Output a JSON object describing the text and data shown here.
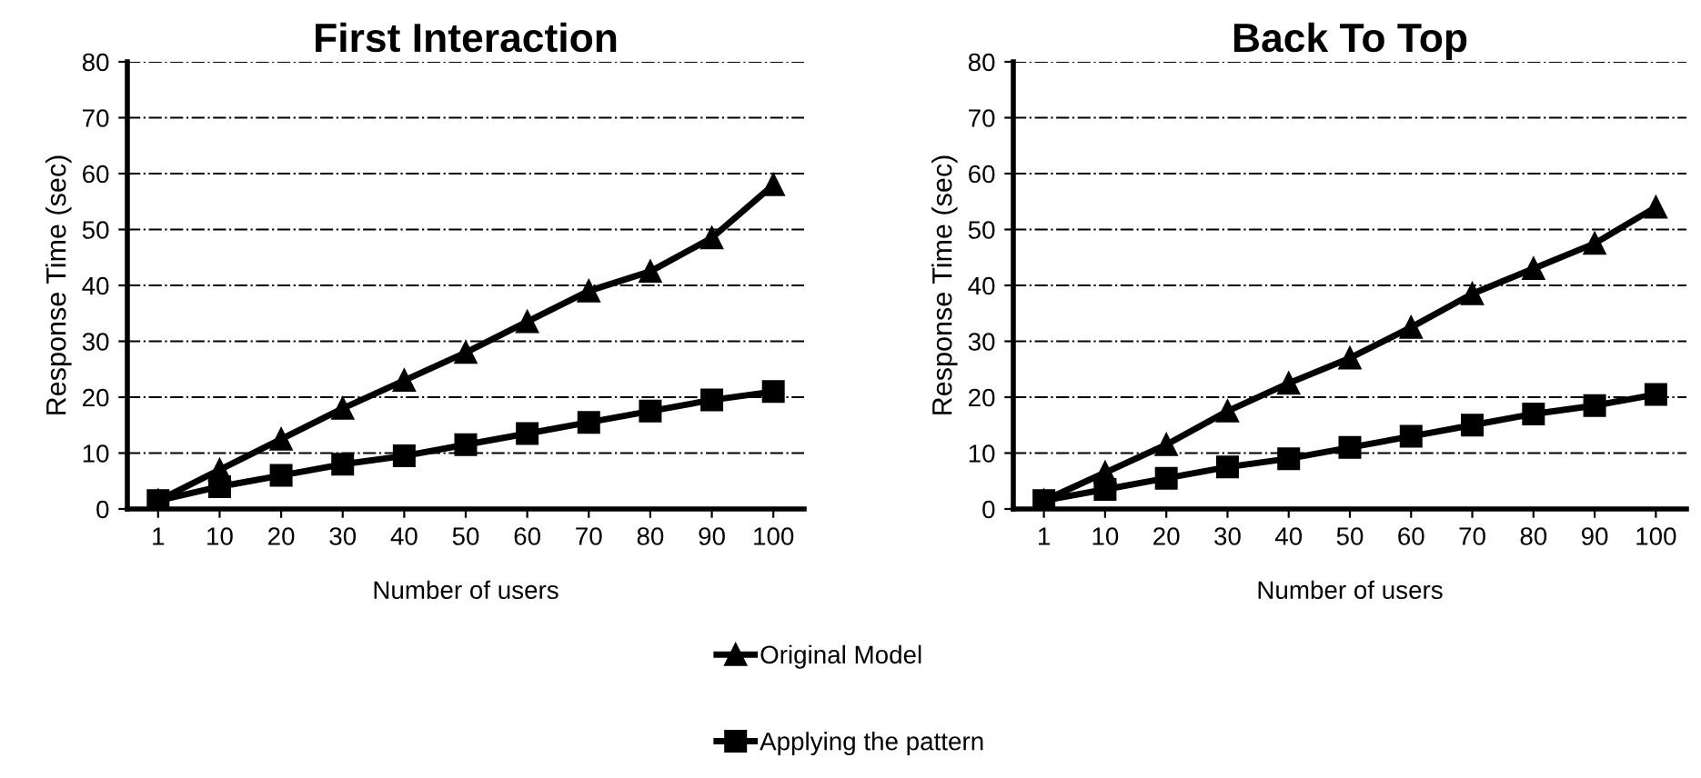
{
  "chart_data": [
    {
      "type": "line",
      "title": "First Interaction",
      "xlabel": "Number of users",
      "ylabel": "Response Time (sec)",
      "categories": [
        "1",
        "10",
        "20",
        "30",
        "40",
        "50",
        "60",
        "70",
        "80",
        "90",
        "100"
      ],
      "ylim": [
        0,
        80
      ],
      "yticks": [
        0,
        10,
        20,
        30,
        40,
        50,
        60,
        70,
        80
      ],
      "grid": "y",
      "legend": "bottom",
      "line_style": "solid",
      "series": [
        {
          "name": "Original Model",
          "color": "#000000",
          "marker": "triangle",
          "values": [
            1.5,
            7,
            12.5,
            18,
            23,
            28,
            33.5,
            39,
            42.5,
            48.5,
            58
          ]
        },
        {
          "name": "Applying the pattern",
          "color": "#000000",
          "marker": "square",
          "values": [
            1.5,
            4,
            6,
            8,
            9.5,
            11.5,
            13.5,
            15.5,
            17.5,
            19.5,
            21
          ]
        }
      ]
    },
    {
      "type": "line",
      "title": "Back To Top",
      "xlabel": "Number of users",
      "ylabel": "Response Time (sec)",
      "categories": [
        "1",
        "10",
        "20",
        "30",
        "40",
        "50",
        "60",
        "70",
        "80",
        "90",
        "100"
      ],
      "ylim": [
        0,
        80
      ],
      "yticks": [
        0,
        10,
        20,
        30,
        40,
        50,
        60,
        70,
        80
      ],
      "grid": "y",
      "line_style": "solid",
      "series": [
        {
          "name": "Original Model",
          "color": "#000000",
          "marker": "triangle",
          "values": [
            1.5,
            6.5,
            11.5,
            17.5,
            22.5,
            27,
            32.5,
            38.5,
            43,
            47.5,
            54
          ]
        },
        {
          "name": "Applying the pattern",
          "color": "#000000",
          "marker": "square",
          "values": [
            1.5,
            3.5,
            5.5,
            7.5,
            9,
            11,
            13,
            15,
            17,
            18.5,
            20.5
          ]
        }
      ]
    }
  ]
}
